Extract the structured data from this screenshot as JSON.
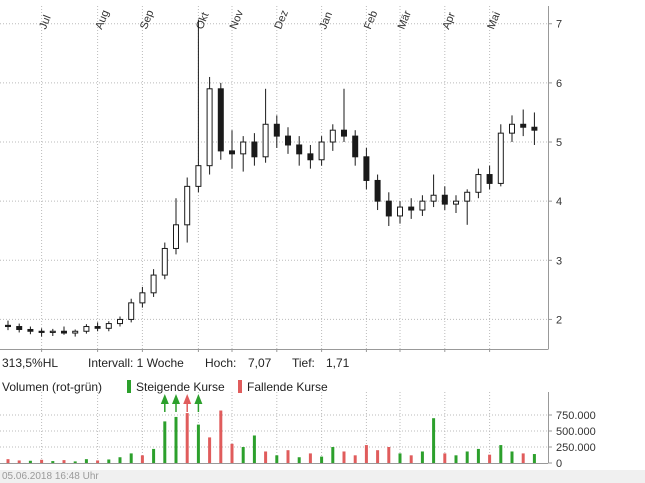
{
  "stats": {
    "hl": "313,5%HL",
    "interval": "Intervall: 1 Woche",
    "hoch_label": "Hoch:",
    "hoch": "7,07",
    "tief_label": "Tief:",
    "tief": "1,71"
  },
  "legend": {
    "volume": "Volumen (rot-grün)",
    "rising": "Steigende Kurse",
    "falling": "Fallende Kurse"
  },
  "footer": {
    "timestamp": "05.06.2018 16:48 Uhr"
  },
  "colors": {
    "rising": "#2ca02c",
    "falling": "#e05c5c",
    "grid": "#bbbbbb",
    "axis": "#999999",
    "candle": "#1a1a1a",
    "text": "#333333"
  },
  "chart_data": [
    {
      "type": "candlestick",
      "title": "",
      "interval": "1 Woche",
      "high": 7.07,
      "low": 1.71,
      "ylim": [
        1.5,
        7.3
      ],
      "yticks": [
        2,
        3,
        4,
        5,
        6,
        7
      ],
      "x_labels": [
        "Jul",
        "Aug",
        "Sep",
        "Okt",
        "Nov",
        "Dez",
        "Jan",
        "Feb",
        "Mär",
        "Apr",
        "Mai"
      ],
      "x_label_indices": [
        3,
        8,
        12,
        17,
        20,
        24,
        28,
        32,
        35,
        39,
        43
      ],
      "candles": [
        [
          1.9,
          1.98,
          1.82,
          1.88
        ],
        [
          1.88,
          1.93,
          1.78,
          1.83
        ],
        [
          1.83,
          1.88,
          1.75,
          1.8
        ],
        [
          1.8,
          1.85,
          1.71,
          1.78
        ],
        [
          1.78,
          1.84,
          1.72,
          1.8
        ],
        [
          1.8,
          1.88,
          1.74,
          1.77
        ],
        [
          1.77,
          1.83,
          1.71,
          1.8
        ],
        [
          1.8,
          1.92,
          1.76,
          1.88
        ],
        [
          1.88,
          1.95,
          1.8,
          1.85
        ],
        [
          1.85,
          1.97,
          1.8,
          1.93
        ],
        [
          1.93,
          2.05,
          1.88,
          2.0
        ],
        [
          2.0,
          2.35,
          1.95,
          2.28
        ],
        [
          2.28,
          2.55,
          2.2,
          2.45
        ],
        [
          2.45,
          2.85,
          2.38,
          2.75
        ],
        [
          2.75,
          3.3,
          2.68,
          3.2
        ],
        [
          3.2,
          4.05,
          3.1,
          3.6
        ],
        [
          3.6,
          4.4,
          3.3,
          4.25
        ],
        [
          4.25,
          7.07,
          4.15,
          4.6
        ],
        [
          4.6,
          6.1,
          4.45,
          5.9
        ],
        [
          5.9,
          6.0,
          4.7,
          4.85
        ],
        [
          4.85,
          5.2,
          4.55,
          4.8
        ],
        [
          4.8,
          5.1,
          4.5,
          5.0
        ],
        [
          5.0,
          5.15,
          4.6,
          4.75
        ],
        [
          4.75,
          5.9,
          4.65,
          5.3
        ],
        [
          5.3,
          5.45,
          4.9,
          5.1
        ],
        [
          5.1,
          5.25,
          4.8,
          4.95
        ],
        [
          4.95,
          5.1,
          4.6,
          4.8
        ],
        [
          4.8,
          4.95,
          4.55,
          4.7
        ],
        [
          4.7,
          5.1,
          4.6,
          5.0
        ],
        [
          5.0,
          5.3,
          4.85,
          5.2
        ],
        [
          5.2,
          5.9,
          5.0,
          5.1
        ],
        [
          5.1,
          5.2,
          4.6,
          4.75
        ],
        [
          4.75,
          4.9,
          4.2,
          4.35
        ],
        [
          4.35,
          4.45,
          3.85,
          4.0
        ],
        [
          4.0,
          4.15,
          3.58,
          3.75
        ],
        [
          3.75,
          4.0,
          3.62,
          3.9
        ],
        [
          3.9,
          4.05,
          3.7,
          3.85
        ],
        [
          3.85,
          4.1,
          3.75,
          4.0
        ],
        [
          4.0,
          4.45,
          3.9,
          4.1
        ],
        [
          4.1,
          4.25,
          3.85,
          3.95
        ],
        [
          3.95,
          4.1,
          3.8,
          4.0
        ],
        [
          4.0,
          4.2,
          3.6,
          4.15
        ],
        [
          4.15,
          4.55,
          4.05,
          4.45
        ],
        [
          4.45,
          4.6,
          4.2,
          4.3
        ],
        [
          4.3,
          5.3,
          4.25,
          5.15
        ],
        [
          5.15,
          5.45,
          5.0,
          5.3
        ],
        [
          5.3,
          5.55,
          5.1,
          5.25
        ],
        [
          5.25,
          5.5,
          4.95,
          5.2
        ]
      ]
    },
    {
      "type": "bar",
      "name": "Volumen",
      "ylim": [
        0,
        1000000
      ],
      "yticks": [
        {
          "value": 750000,
          "label": "750.000"
        },
        {
          "value": 500000,
          "label": "500.000"
        },
        {
          "value": 250000,
          "label": "250.000"
        },
        {
          "value": 0,
          "label": "0"
        }
      ],
      "values": [
        60000,
        40000,
        35000,
        50000,
        30000,
        45000,
        25000,
        60000,
        40000,
        55000,
        90000,
        150000,
        120000,
        220000,
        650000,
        720000,
        780000,
        600000,
        400000,
        820000,
        300000,
        250000,
        430000,
        180000,
        120000,
        200000,
        90000,
        150000,
        100000,
        250000,
        180000,
        120000,
        280000,
        200000,
        250000,
        150000,
        120000,
        180000,
        700000,
        150000,
        120000,
        180000,
        220000,
        130000,
        280000,
        180000,
        150000,
        140000
      ],
      "dirs": [
        "r",
        "r",
        "g",
        "r",
        "g",
        "r",
        "g",
        "g",
        "r",
        "g",
        "g",
        "g",
        "r",
        "g",
        "g",
        "g",
        "r",
        "g",
        "r",
        "r",
        "r",
        "g",
        "g",
        "r",
        "g",
        "r",
        "g",
        "r",
        "g",
        "g",
        "r",
        "r",
        "r",
        "r",
        "r",
        "g",
        "r",
        "g",
        "g",
        "r",
        "g",
        "g",
        "g",
        "r",
        "g",
        "g",
        "r",
        "g"
      ],
      "markers": [
        {
          "index": 14,
          "color": "rising"
        },
        {
          "index": 15,
          "color": "rising"
        },
        {
          "index": 16,
          "color": "falling"
        },
        {
          "index": 17,
          "color": "rising"
        }
      ]
    }
  ]
}
